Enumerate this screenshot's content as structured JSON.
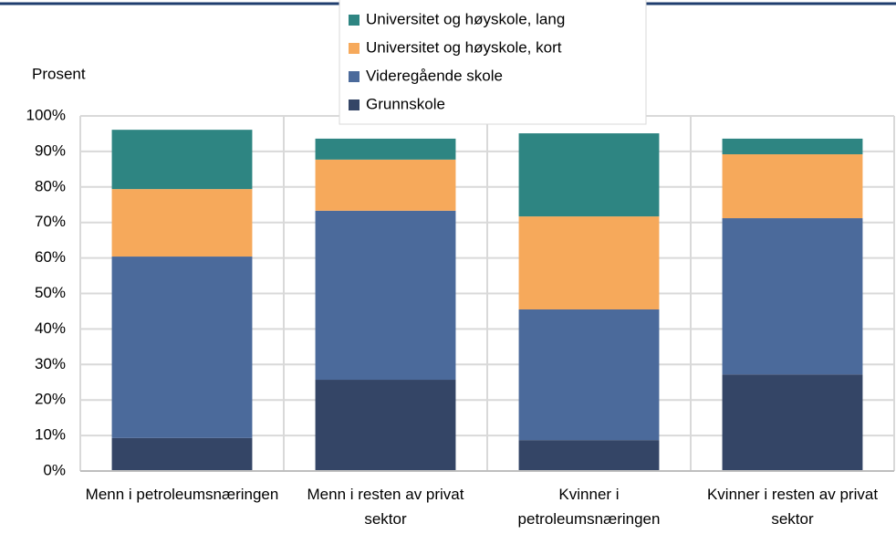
{
  "chart_data": {
    "type": "stacked_bar",
    "y_label": "Prosent",
    "categories": [
      "Menn i petroleumsnæringen",
      "Menn i resten av privat sektor",
      "Kvinner i petroleumsnæringen",
      "Kvinner i resten av privat sektor"
    ],
    "series": [
      {
        "name": "Grunnskole",
        "color": "#344566",
        "values": [
          9.3,
          25.7,
          8.7,
          27.2
        ]
      },
      {
        "name": "Videregående skole",
        "color": "#4b6a9b",
        "values": [
          51.1,
          47.6,
          36.8,
          44.0
        ]
      },
      {
        "name": "Universitet og høyskole, kort",
        "color": "#f6a95b",
        "values": [
          19.0,
          14.4,
          26.2,
          18.0
        ]
      },
      {
        "name": "Universitet og høyskole, lang",
        "color": "#2e8582",
        "values": [
          16.7,
          5.9,
          23.4,
          4.4
        ]
      }
    ],
    "ylim": [
      0,
      100
    ],
    "yticks": [
      {
        "value": 0,
        "label": "0%"
      },
      {
        "value": 10,
        "label": "10%"
      },
      {
        "value": 20,
        "label": "20%"
      },
      {
        "value": 30,
        "label": "30%"
      },
      {
        "value": 40,
        "label": "40%"
      },
      {
        "value": 50,
        "label": "50%"
      },
      {
        "value": 60,
        "label": "60%"
      },
      {
        "value": 70,
        "label": "70%"
      },
      {
        "value": 80,
        "label": "80%"
      },
      {
        "value": 90,
        "label": "90%"
      },
      {
        "value": 100,
        "label": "100%"
      }
    ],
    "grid": true
  }
}
